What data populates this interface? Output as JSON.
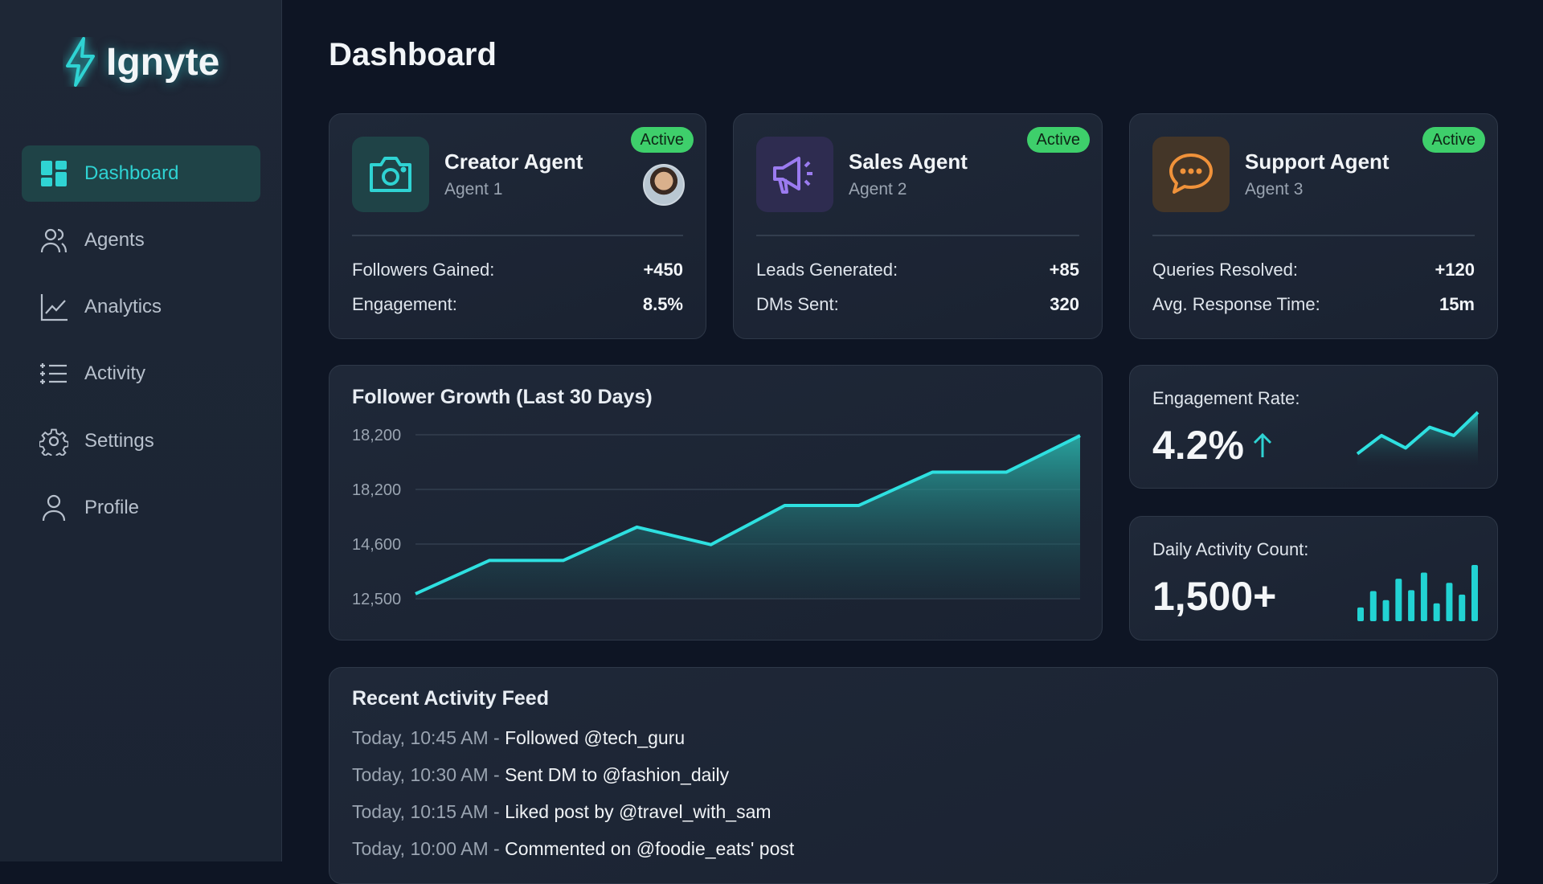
{
  "brand": {
    "name": "Ignyte",
    "accent": "#2fd3d3"
  },
  "sidebar": {
    "items": [
      {
        "label": "Dashboard",
        "icon": "dashboard-grid-icon",
        "active": true
      },
      {
        "label": "Agents",
        "icon": "users-icon"
      },
      {
        "label": "Analytics",
        "icon": "line-chart-icon"
      },
      {
        "label": "Activity",
        "icon": "list-icon"
      },
      {
        "label": "Settings",
        "icon": "gear-icon"
      },
      {
        "label": "Profile",
        "icon": "user-icon"
      }
    ]
  },
  "page": {
    "title": "Dashboard"
  },
  "agents": [
    {
      "name": "Creator Agent",
      "sub": "Agent 1",
      "status": "Active",
      "icon": "camera-icon",
      "color": "#2fd3d3",
      "stats": [
        {
          "label": "Followers Gained:",
          "value": "+450"
        },
        {
          "label": "Engagement:",
          "value": "8.5%"
        }
      ]
    },
    {
      "name": "Sales Agent",
      "sub": "Agent 2",
      "status": "Active",
      "icon": "megaphone-icon",
      "color": "#9b7bf0",
      "stats": [
        {
          "label": "Leads Generated:",
          "value": "+85"
        },
        {
          "label": "DMs Sent:",
          "value": "320"
        }
      ]
    },
    {
      "name": "Support Agent",
      "sub": "Agent 3",
      "status": "Active",
      "icon": "chat-bubble-icon",
      "color": "#f0923a",
      "stats": [
        {
          "label": "Queries Resolved:",
          "value": "+120"
        },
        {
          "label": "Avg. Response Time:",
          "value": "15m"
        }
      ]
    }
  ],
  "chart_data": [
    {
      "type": "area",
      "title": "Follower Growth (Last 30 Days)",
      "ytick_labels": [
        "18,200",
        "18,200",
        "14,600",
        "12,500"
      ],
      "ylim": [
        12500,
        18200
      ],
      "grid": true,
      "values": [
        12670,
        13830,
        13830,
        14990,
        14380,
        15740,
        15740,
        16900,
        16900,
        18170
      ]
    },
    {
      "type": "area",
      "title": "Engagement Rate:",
      "values": [
        1,
        3.2,
        1.7,
        4.2,
        3.2,
        6
      ]
    },
    {
      "type": "bar",
      "title": "Daily Activity Count:",
      "values": [
        50,
        110,
        77,
        155,
        113,
        177,
        65,
        140,
        97,
        205
      ]
    }
  ],
  "kpis": {
    "engagement": {
      "label": "Engagement Rate:",
      "value": "4.2%",
      "trend": "up"
    },
    "daily": {
      "label": "Daily Activity Count:",
      "value": "1,500+"
    }
  },
  "feed": {
    "title": "Recent Activity Feed",
    "items": [
      {
        "time": "Today, 10:45 AM",
        "text": "Followed @tech_guru"
      },
      {
        "time": "Today, 10:30 AM",
        "text": "Sent DM to @fashion_daily"
      },
      {
        "time": "Today, 10:15 AM",
        "text": "Liked post by @travel_with_sam"
      },
      {
        "time": "Today, 10:00 AM",
        "text": "Commented on @foodie_eats' post"
      }
    ]
  }
}
